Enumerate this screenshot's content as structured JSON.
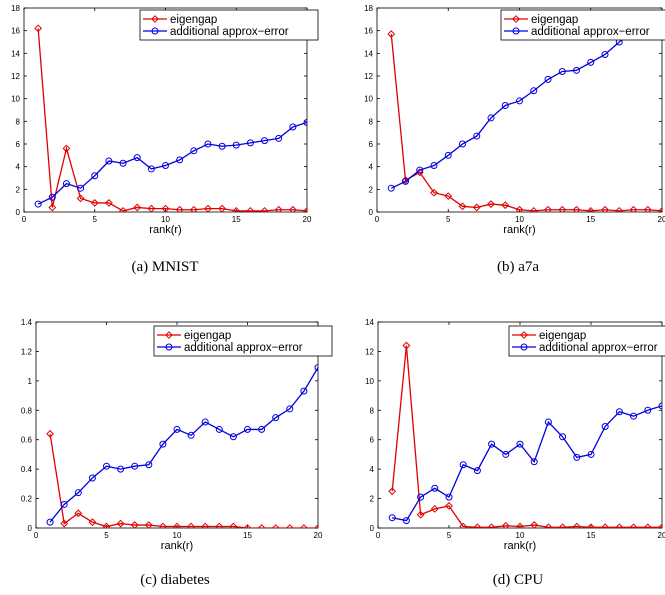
{
  "colors": {
    "eigengap": "#e00000",
    "error": "#0000e0",
    "axis": "#000000"
  },
  "chart_data": [
    {
      "type": "line",
      "caption": "(a)  MNIST",
      "xlabel": "rank(r)",
      "xlim": [
        0,
        20
      ],
      "ylim": [
        0,
        18
      ],
      "xticks": [
        0,
        5,
        10,
        15,
        20
      ],
      "xtick_labels": [
        "0",
        "5",
        "10",
        "15",
        "20"
      ],
      "yticks": [
        0,
        2,
        4,
        6,
        8,
        10,
        12,
        14,
        16,
        18
      ],
      "ytick_labels": [
        "0",
        "2",
        "4",
        "6",
        "8",
        "10",
        "12",
        "14",
        "16",
        "18"
      ],
      "x": [
        1,
        2,
        3,
        4,
        5,
        6,
        7,
        8,
        9,
        10,
        11,
        12,
        13,
        14,
        15,
        16,
        17,
        18,
        19,
        20
      ],
      "series": [
        {
          "name": "eigengap",
          "marker": "diamond",
          "values": [
            16.2,
            0.4,
            5.6,
            1.2,
            0.8,
            0.8,
            0.1,
            0.4,
            0.3,
            0.3,
            0.2,
            0.2,
            0.3,
            0.3,
            0.1,
            0.1,
            0.1,
            0.2,
            0.2,
            0.1
          ]
        },
        {
          "name": "additional approx−error",
          "marker": "circle",
          "values": [
            0.7,
            1.3,
            2.5,
            2.1,
            3.2,
            4.5,
            4.3,
            4.8,
            3.8,
            4.1,
            4.6,
            5.4,
            6.0,
            5.8,
            5.9,
            6.1,
            6.3,
            6.5,
            7.5,
            7.9
          ]
        }
      ],
      "legend": "top-right"
    },
    {
      "type": "line",
      "caption": "(b)  a7a",
      "xlabel": "rank(r)",
      "xlim": [
        0,
        20
      ],
      "ylim": [
        0,
        18
      ],
      "xticks": [
        0,
        5,
        10,
        15,
        20
      ],
      "xtick_labels": [
        "0",
        "5",
        "10",
        "15",
        "20"
      ],
      "yticks": [
        0,
        2,
        4,
        6,
        8,
        10,
        12,
        14,
        16,
        18
      ],
      "ytick_labels": [
        "0",
        "2",
        "4",
        "6",
        "8",
        "10",
        "12",
        "14",
        "16",
        "18"
      ],
      "x": [
        1,
        2,
        3,
        4,
        5,
        6,
        7,
        8,
        9,
        10,
        11,
        12,
        13,
        14,
        15,
        16,
        17,
        18,
        19,
        20
      ],
      "series": [
        {
          "name": "eigengap",
          "marker": "diamond",
          "values": [
            15.7,
            2.8,
            3.5,
            1.7,
            1.4,
            0.5,
            0.4,
            0.7,
            0.6,
            0.2,
            0.1,
            0.2,
            0.2,
            0.2,
            0.1,
            0.2,
            0.1,
            0.2,
            0.2,
            0.1
          ]
        },
        {
          "name": "additional approx−error",
          "marker": "circle",
          "values": [
            2.1,
            2.7,
            3.7,
            4.1,
            5.0,
            6.0,
            6.7,
            8.3,
            9.4,
            9.8,
            10.7,
            11.7,
            12.4,
            12.5,
            13.2,
            13.9,
            15.0,
            16.0,
            16.5,
            17.0
          ]
        }
      ],
      "legend": "top-right"
    },
    {
      "type": "line",
      "caption": "(c)  diabetes",
      "xlabel": "rank(r)",
      "xlim": [
        0,
        20
      ],
      "ylim": [
        0,
        1.4
      ],
      "xticks": [
        0,
        5,
        10,
        15,
        20
      ],
      "xtick_labels": [
        "0",
        "5",
        "10",
        "15",
        "20"
      ],
      "yticks": [
        0,
        0.2,
        0.4,
        0.6,
        0.8,
        1.0,
        1.2,
        1.4
      ],
      "ytick_labels": [
        "0",
        "0.2",
        "0.4",
        "0.6",
        "0.8",
        "1",
        "1.2",
        "1.4"
      ],
      "x": [
        1,
        2,
        3,
        4,
        5,
        6,
        7,
        8,
        9,
        10,
        11,
        12,
        13,
        14,
        15,
        16,
        17,
        18,
        19,
        20
      ],
      "series": [
        {
          "name": "eigengap",
          "marker": "diamond",
          "values": [
            0.64,
            0.03,
            0.1,
            0.04,
            0.01,
            0.03,
            0.02,
            0.02,
            0.01,
            0.01,
            0.01,
            0.01,
            0.01,
            0.01,
            0.0,
            0.0,
            0.0,
            0.0,
            0.0,
            0.0
          ]
        },
        {
          "name": "additional approx−error",
          "marker": "circle",
          "values": [
            0.04,
            0.16,
            0.24,
            0.34,
            0.42,
            0.4,
            0.42,
            0.43,
            0.57,
            0.67,
            0.63,
            0.72,
            0.67,
            0.62,
            0.67,
            0.67,
            0.75,
            0.81,
            0.93,
            1.09
          ]
        }
      ],
      "legend": "top-right"
    },
    {
      "type": "line",
      "caption": "(d)  CPU",
      "xlabel": "rank(r)",
      "xlim": [
        0,
        20
      ],
      "ylim": [
        0,
        14
      ],
      "xticks": [
        0,
        5,
        10,
        15,
        20
      ],
      "xtick_labels": [
        "0",
        "5",
        "10",
        "15",
        "20"
      ],
      "yticks": [
        0,
        2,
        4,
        6,
        8,
        10,
        12,
        14
      ],
      "ytick_labels": [
        "0",
        "2",
        "4",
        "6",
        "8",
        "10",
        "12",
        "14"
      ],
      "x": [
        1,
        2,
        3,
        4,
        5,
        6,
        7,
        8,
        9,
        10,
        11,
        12,
        13,
        14,
        15,
        16,
        17,
        18,
        19,
        20
      ],
      "series": [
        {
          "name": "eigengap",
          "marker": "diamond",
          "values": [
            2.5,
            12.4,
            0.9,
            1.3,
            1.5,
            0.1,
            0.05,
            0.05,
            0.15,
            0.1,
            0.2,
            0.05,
            0.05,
            0.1,
            0.05,
            0.05,
            0.05,
            0.05,
            0.05,
            0.05
          ]
        },
        {
          "name": "additional approx−error",
          "marker": "circle",
          "values": [
            0.7,
            0.5,
            2.1,
            2.7,
            2.1,
            4.3,
            3.9,
            5.7,
            5.0,
            5.7,
            4.5,
            7.2,
            6.2,
            4.8,
            5.0,
            6.9,
            7.9,
            7.6,
            8.0,
            8.3
          ]
        }
      ],
      "legend": "top-right"
    }
  ]
}
